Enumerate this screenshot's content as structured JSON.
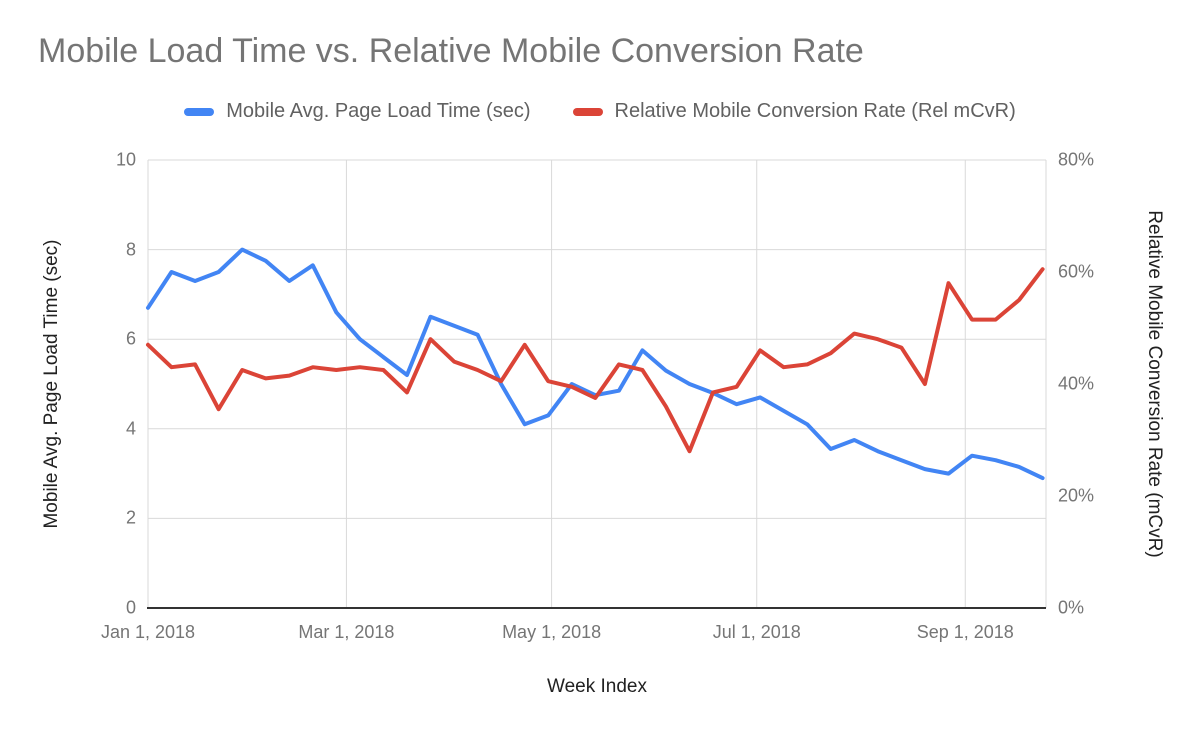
{
  "title": "Mobile Load Time vs. Relative Mobile Conversion Rate",
  "legend": [
    {
      "label": "Mobile Avg. Page Load Time (sec)",
      "color": "#4285f4"
    },
    {
      "label": "Relative Mobile Conversion Rate (Rel mCvR)",
      "color": "#db4437"
    }
  ],
  "colors": {
    "series_blue": "#4285f4",
    "series_red": "#db4437",
    "gridline": "#d9d9d9",
    "baseline": "#333333",
    "title_text": "#757575",
    "tick_text": "#757575",
    "axis_title_text": "#212121"
  },
  "chart_data": {
    "type": "line",
    "title": "Mobile Load Time vs. Relative Mobile Conversion Rate",
    "xlabel": "Week Index",
    "ylabel_left": "Mobile Avg. Page Load Time (sec)",
    "ylabel_right": "Relative Mobile Conversion Rate (mCvR)",
    "grid": true,
    "legend_position": "top",
    "x": [
      "2018-01-01",
      "2018-01-08",
      "2018-01-15",
      "2018-01-22",
      "2018-01-29",
      "2018-02-05",
      "2018-02-12",
      "2018-02-19",
      "2018-02-26",
      "2018-03-05",
      "2018-03-12",
      "2018-03-19",
      "2018-03-26",
      "2018-04-02",
      "2018-04-09",
      "2018-04-16",
      "2018-04-23",
      "2018-04-30",
      "2018-05-07",
      "2018-05-14",
      "2018-05-21",
      "2018-05-28",
      "2018-06-04",
      "2018-06-11",
      "2018-06-18",
      "2018-06-25",
      "2018-07-02",
      "2018-07-09",
      "2018-07-16",
      "2018-07-23",
      "2018-07-30",
      "2018-08-06",
      "2018-08-13",
      "2018-08-20",
      "2018-08-27",
      "2018-09-03",
      "2018-09-10",
      "2018-09-17",
      "2018-09-24"
    ],
    "series": [
      {
        "name": "Mobile Avg. Page Load Time (sec)",
        "axis": "left",
        "color": "#4285f4",
        "values": [
          6.7,
          7.5,
          7.3,
          7.5,
          8.0,
          7.75,
          7.3,
          7.65,
          6.6,
          6.0,
          5.6,
          5.2,
          6.5,
          6.3,
          6.1,
          5.0,
          4.1,
          4.3,
          5.0,
          4.75,
          4.85,
          5.75,
          5.3,
          5.0,
          4.8,
          4.55,
          4.7,
          4.4,
          4.1,
          3.55,
          3.75,
          3.5,
          3.3,
          3.1,
          3.0,
          3.4,
          3.3,
          3.15,
          2.9
        ]
      },
      {
        "name": "Relative Mobile Conversion Rate (Rel mCvR)",
        "axis": "right",
        "color": "#db4437",
        "values": [
          47,
          43,
          43.5,
          35.5,
          42.5,
          41,
          41.5,
          43,
          42.5,
          43,
          42.5,
          38.5,
          48,
          44,
          42.5,
          40.5,
          47,
          40.5,
          39.5,
          37.5,
          43.5,
          42.5,
          36,
          28,
          38.5,
          39.5,
          46,
          43,
          43.5,
          45.5,
          49,
          48,
          46.5,
          40,
          58,
          51.5,
          51.5,
          55,
          60.5
        ]
      }
    ],
    "left_axis": {
      "min": 0,
      "max": 10,
      "ticks": [
        "0",
        "2",
        "4",
        "6",
        "8",
        "10"
      ]
    },
    "right_axis": {
      "min": 0,
      "max": 80,
      "ticks": [
        "0%",
        "20%",
        "40%",
        "60%",
        "80%"
      ]
    },
    "x_ticks": [
      {
        "label": "Jan 1, 2018",
        "day": 0
      },
      {
        "label": "Mar 1, 2018",
        "day": 59
      },
      {
        "label": "May 1, 2018",
        "day": 120
      },
      {
        "label": "Jul 1, 2018",
        "day": 181
      },
      {
        "label": "Sep 1, 2018",
        "day": 243
      }
    ]
  }
}
